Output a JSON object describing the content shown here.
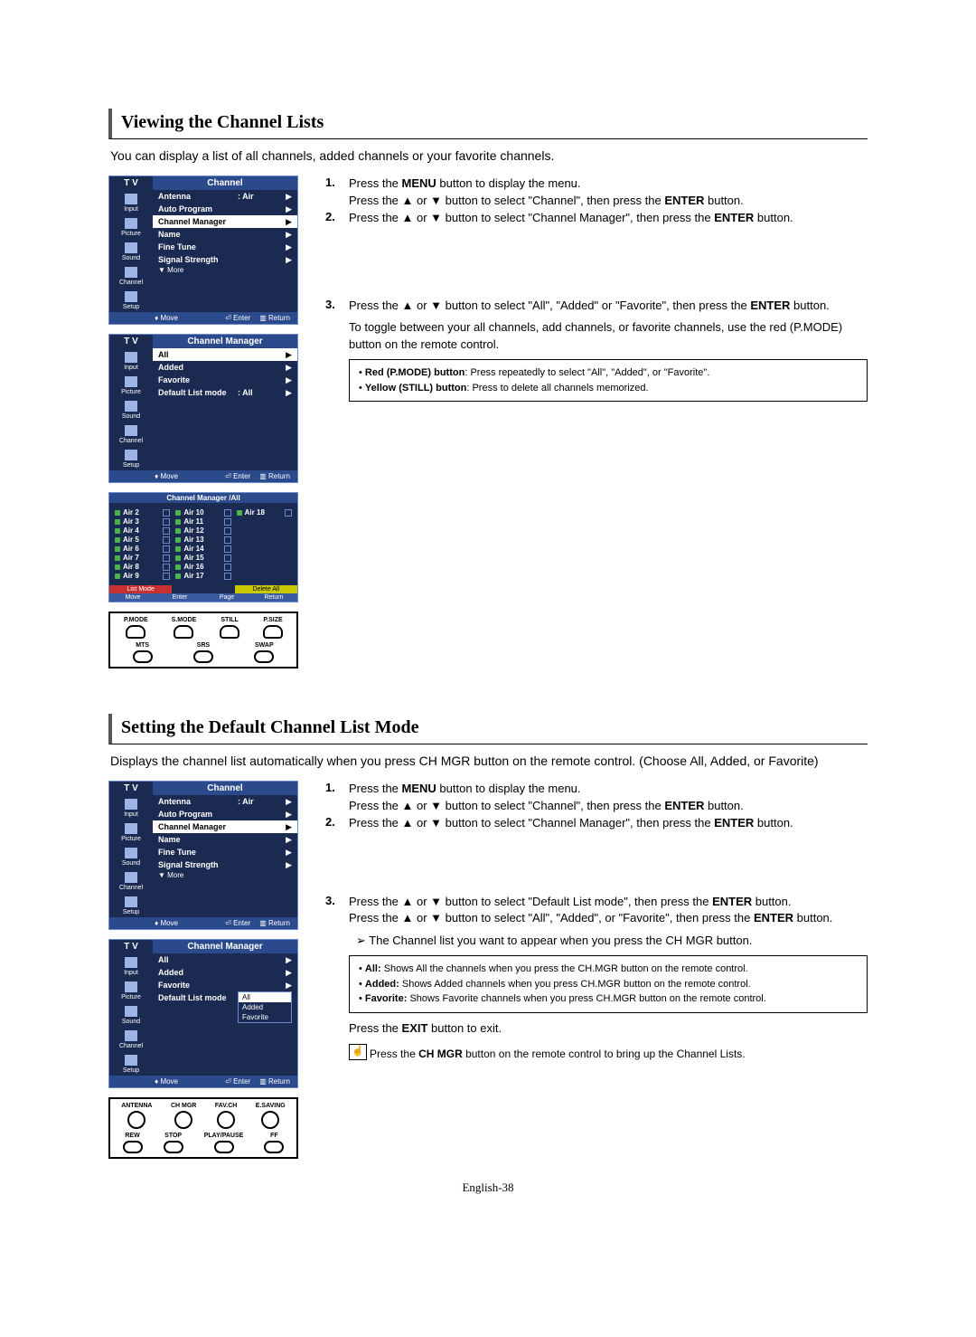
{
  "section1": {
    "title": "Viewing the Channel Lists",
    "intro": "You can display a list of all channels, added channels or your favorite channels."
  },
  "section2": {
    "title": "Setting the Default Channel List Mode",
    "intro": "Displays the channel list automatically when you press CH MGR button on the remote control. (Choose All, Added, or Favorite)"
  },
  "ui_common": {
    "tv": "T V",
    "channel": "Channel",
    "channel_manager": "Channel Manager",
    "move": "Move",
    "enter": "Enter",
    "return": "Return"
  },
  "sidebar": {
    "items": [
      {
        "label": "Input"
      },
      {
        "label": "Picture"
      },
      {
        "label": "Sound"
      },
      {
        "label": "Channel"
      },
      {
        "label": "Setup"
      }
    ]
  },
  "panel_channel": {
    "rows": [
      {
        "label": "Antenna",
        "value": ": Air",
        "hl": false
      },
      {
        "label": "Auto Program",
        "value": "",
        "hl": false
      },
      {
        "label": "Channel Manager",
        "value": "",
        "hl": true
      },
      {
        "label": "Name",
        "value": "",
        "hl": false
      },
      {
        "label": "Fine Tune",
        "value": "",
        "hl": false
      },
      {
        "label": "Signal Strength",
        "value": "",
        "hl": false
      }
    ],
    "more": "▼ More"
  },
  "panel_cm": {
    "rows": [
      {
        "label": "All",
        "hl": true
      },
      {
        "label": "Added",
        "hl": false
      },
      {
        "label": "Favorite",
        "hl": false
      },
      {
        "label": "Default List mode",
        "value": ": All",
        "hl": false
      }
    ]
  },
  "panel_cm2": {
    "rows": [
      {
        "label": "All",
        "hl": false
      },
      {
        "label": "Added",
        "hl": false
      },
      {
        "label": "Favorite",
        "hl": false
      },
      {
        "label": "Default List mode",
        "value": ":",
        "hl": false
      }
    ],
    "dropdown": {
      "items": [
        {
          "label": "All",
          "sel": true
        },
        {
          "label": "Added",
          "sel": false
        },
        {
          "label": "Favorite",
          "sel": false
        }
      ]
    }
  },
  "grid": {
    "title": "Channel Manager /All",
    "cols": [
      [
        "Air 2",
        "Air 3",
        "Air 4",
        "Air 5",
        "Air 6",
        "Air 7",
        "Air 8",
        "Air 9"
      ],
      [
        "Air 10",
        "Air 11",
        "Air 12",
        "Air 13",
        "Air 14",
        "Air 15",
        "Air 16",
        "Air 17"
      ],
      [
        "Air 18"
      ]
    ],
    "foot": {
      "list_mode": "List Mode",
      "delete_all": "Delete All",
      "move": "Move",
      "enter": "Enter",
      "page": "Page",
      "return": "Return"
    }
  },
  "remote1": {
    "row1": [
      "P.MODE",
      "S.MODE",
      "STILL",
      "P.SIZE"
    ],
    "row2": [
      "MTS",
      "SRS",
      "SWAP"
    ]
  },
  "remote2": {
    "row1": [
      "ANTENNA",
      "CH MGR",
      "FAV.CH",
      "E.SAVING"
    ],
    "row2": [
      "REW",
      "STOP",
      "PLAY/PAUSE",
      "FF"
    ]
  },
  "instr1": [
    {
      "n": "1.",
      "t1": "Press the ",
      "b1": "MENU",
      "t2": " button to display the menu.",
      "t3": "Press the ▲ or ▼ button to select \"Channel\", then press the ",
      "b2": "ENTER",
      "t4": " button."
    },
    {
      "n": "2.",
      "t1": "Press the ▲ or ▼ button to select \"Channel Manager\", then press the ",
      "b1": "ENTER",
      "t2": " button."
    }
  ],
  "instr1b": {
    "n": "3.",
    "t1": "Press the ▲ or ▼ button to select \"All\", \"Added\" or \"Favorite\", then press the ",
    "b1": "ENTER",
    "t2": " button.",
    "t3": "To toggle between your all channels, add channels, or favorite channels, use the red (P.MODE) button on the remote control."
  },
  "note1": {
    "l1a": "Red (P.MODE) button",
    "l1b": ": Press repeatedly to select \"All\", \"Added\", or \"Favorite\".",
    "l2a": "Yellow (STILL) button",
    "l2b": ": Press to delete all channels memorized."
  },
  "instr2": [
    {
      "n": "1.",
      "t1": "Press the ",
      "b1": "MENU",
      "t2": " button to display the menu.",
      "t3": "Press the ▲ or ▼ button to select \"Channel\", then press the ",
      "b2": "ENTER",
      "t4": " button."
    },
    {
      "n": "2.",
      "t1": "Press the ▲ or ▼ button to select \"Channel Manager\", then press the ",
      "b1": "ENTER",
      "t2": " button."
    }
  ],
  "instr2b": {
    "n": "3.",
    "t1": "Press the ▲ or ▼ button to select \"Default List mode\", then press the ",
    "b1": "ENTER",
    "t2": " button.",
    "t3": "Press the ▲ or ▼ button to select \"All\", \"Added\", or \"Favorite\", then press the ",
    "b2": "ENTER",
    "t4": " button.",
    "arrow": "The Channel list you want to appear when you press the CH MGR button."
  },
  "note2": {
    "l1a": "All:",
    "l1b": " Shows All the channels when you press the CH.MGR button on the remote control.",
    "l2a": "Added:",
    "l2b": " Shows Added channels when you press CH.MGR button on the remote control.",
    "l3a": "Favorite:",
    "l3b": " Shows Favorite channels when you press CH.MGR button on the remote control."
  },
  "exit": {
    "t1": "Press the ",
    "b1": "EXIT",
    "t2": " button to exit."
  },
  "footnote": {
    "t1": "Press the ",
    "b1": "CH MGR",
    "t2": " button on the remote control to bring up the Channel Lists."
  },
  "page_num": "English-38"
}
